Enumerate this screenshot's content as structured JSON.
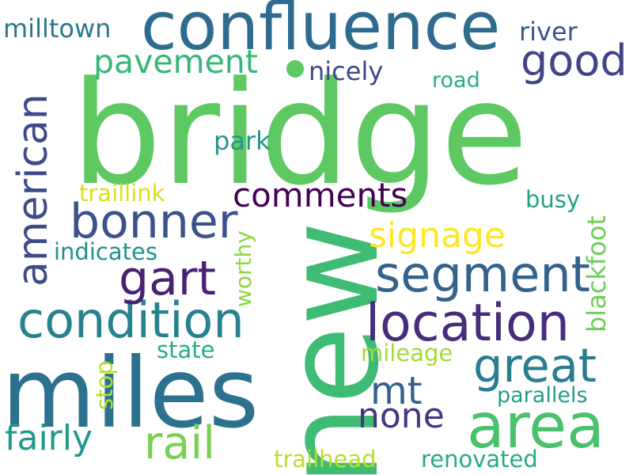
{
  "colors": {
    "background": "#ffffff",
    "dot": "#5ec962"
  },
  "words": [
    {
      "text": "bridge",
      "color": "#5ec962",
      "orientation": "horizontal"
    },
    {
      "text": "new",
      "color": "#3fbc73",
      "orientation": "vertical"
    },
    {
      "text": "miles",
      "color": "#2c728e",
      "orientation": "horizontal"
    },
    {
      "text": "confluence",
      "color": "#2f6b8e",
      "orientation": "horizontal"
    },
    {
      "text": "area",
      "color": "#4ac16d",
      "orientation": "horizontal"
    },
    {
      "text": "location",
      "color": "#472d7b",
      "orientation": "horizontal"
    },
    {
      "text": "condition",
      "color": "#26828e",
      "orientation": "horizontal"
    },
    {
      "text": "segment",
      "color": "#33628d",
      "orientation": "horizontal"
    },
    {
      "text": "bonner",
      "color": "#3b528b",
      "orientation": "horizontal"
    },
    {
      "text": "gart",
      "color": "#482173",
      "orientation": "horizontal"
    },
    {
      "text": "great",
      "color": "#287d8e",
      "orientation": "horizontal"
    },
    {
      "text": "rail",
      "color": "#7ad151",
      "orientation": "horizontal"
    },
    {
      "text": "american",
      "color": "#3e4a89",
      "orientation": "vertical"
    },
    {
      "text": "good",
      "color": "#414487",
      "orientation": "horizontal"
    },
    {
      "text": "mt",
      "color": "#34608d",
      "orientation": "horizontal"
    },
    {
      "text": "fairly",
      "color": "#1f9a8a",
      "orientation": "horizontal"
    },
    {
      "text": "none",
      "color": "#453781",
      "orientation": "horizontal"
    },
    {
      "text": "signage",
      "color": "#fde725",
      "orientation": "horizontal"
    },
    {
      "text": "comments",
      "color": "#440154",
      "orientation": "horizontal"
    },
    {
      "text": "pavement",
      "color": "#35b779",
      "orientation": "horizontal"
    },
    {
      "text": "milltown",
      "color": "#2a788e",
      "orientation": "horizontal"
    },
    {
      "text": "river",
      "color": "#39568c",
      "orientation": "horizontal"
    },
    {
      "text": "nicely",
      "color": "#3f4889",
      "orientation": "horizontal"
    },
    {
      "text": "road",
      "color": "#29af7f",
      "orientation": "horizontal"
    },
    {
      "text": "park",
      "color": "#1f988b",
      "orientation": "horizontal"
    },
    {
      "text": "traillink",
      "color": "#d8e219",
      "orientation": "horizontal"
    },
    {
      "text": "busy",
      "color": "#20a386",
      "orientation": "horizontal"
    },
    {
      "text": "blackfoot",
      "color": "#6ece58",
      "orientation": "vertical"
    },
    {
      "text": "indicates",
      "color": "#21918c",
      "orientation": "horizontal"
    },
    {
      "text": "worthy",
      "color": "#8fd744",
      "orientation": "vertical"
    },
    {
      "text": "state",
      "color": "#28ae80",
      "orientation": "horizontal"
    },
    {
      "text": "mileage",
      "color": "#a5db36",
      "orientation": "horizontal"
    },
    {
      "text": "stop",
      "color": "#b5de2b",
      "orientation": "vertical"
    },
    {
      "text": "parallels",
      "color": "#1fa088",
      "orientation": "horizontal"
    },
    {
      "text": "trailhead",
      "color": "#b8de29",
      "orientation": "horizontal"
    },
    {
      "text": "renovated",
      "color": "#25ab82",
      "orientation": "horizontal"
    }
  ]
}
